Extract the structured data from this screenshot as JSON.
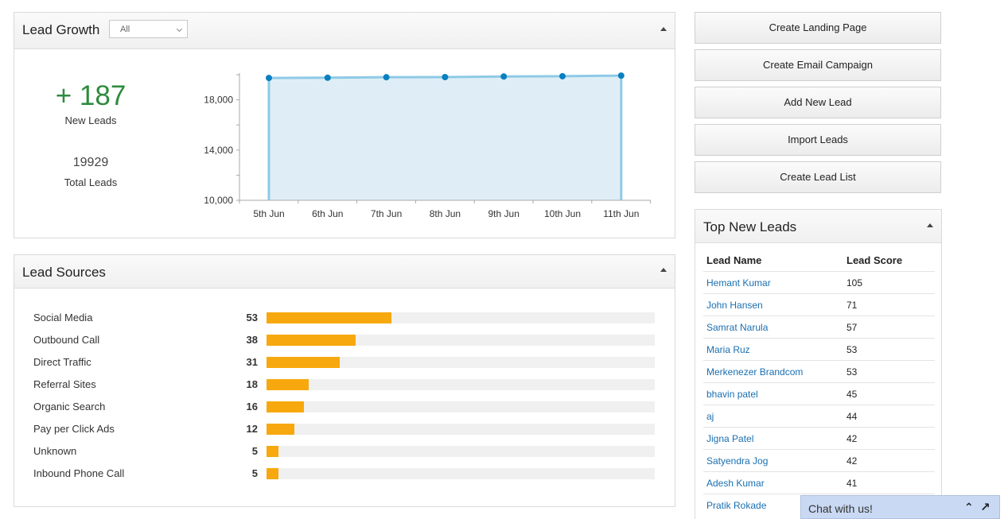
{
  "lead_growth": {
    "title": "Lead Growth",
    "filter_value": "All",
    "new_leads_value": "+ 187",
    "new_leads_label": "New Leads",
    "total_leads_value": "19929",
    "total_leads_label": "Total Leads"
  },
  "chart_data": {
    "type": "area",
    "categories": [
      "5th Jun",
      "6th Jun",
      "7th Jun",
      "8th Jun",
      "9th Jun",
      "10th Jun",
      "11th Jun"
    ],
    "values": [
      19742,
      19760,
      19800,
      19810,
      19860,
      19880,
      19929
    ],
    "y_ticks": [
      "10,000",
      "14,000",
      "18,000"
    ],
    "y_tick_values": [
      10000,
      14000,
      18000
    ],
    "ylim": [
      10000,
      20000
    ],
    "line_color": "#8ecae6",
    "fill_color": "#dfeef6",
    "point_color": "#0a7fc0"
  },
  "lead_sources": {
    "title": "Lead Sources",
    "max": 165,
    "bar_color": "#f7a80e",
    "items": [
      {
        "label": "Social Media",
        "count": 53
      },
      {
        "label": "Outbound Call",
        "count": 38
      },
      {
        "label": "Direct Traffic",
        "count": 31
      },
      {
        "label": "Referral Sites",
        "count": 18
      },
      {
        "label": "Organic Search",
        "count": 16
      },
      {
        "label": "Pay per Click Ads",
        "count": 12
      },
      {
        "label": "Unknown",
        "count": 5
      },
      {
        "label": "Inbound Phone Call",
        "count": 5
      }
    ]
  },
  "actions": {
    "create_landing_page": "Create Landing Page",
    "create_email_campaign": "Create Email Campaign",
    "add_new_lead": "Add New Lead",
    "import_leads": "Import Leads",
    "create_lead_list": "Create Lead List"
  },
  "top_leads": {
    "title": "Top New Leads",
    "col_name": "Lead Name",
    "col_score": "Lead Score",
    "rows": [
      {
        "name": "Hemant Kumar",
        "score": "105"
      },
      {
        "name": "John Hansen",
        "score": "71"
      },
      {
        "name": "Samrat Narula",
        "score": "57"
      },
      {
        "name": "Maria Ruz",
        "score": "53"
      },
      {
        "name": "Merkenezer Brandcom",
        "score": "53"
      },
      {
        "name": "bhavin patel",
        "score": "45"
      },
      {
        "name": "aj",
        "score": "44"
      },
      {
        "name": "Jigna Patel",
        "score": "42"
      },
      {
        "name": "Satyendra Jog",
        "score": "42"
      },
      {
        "name": "Adesh Kumar",
        "score": "41"
      },
      {
        "name": "Pratik Rokade",
        "score": ""
      }
    ]
  },
  "chat": {
    "label": "Chat with us!"
  }
}
